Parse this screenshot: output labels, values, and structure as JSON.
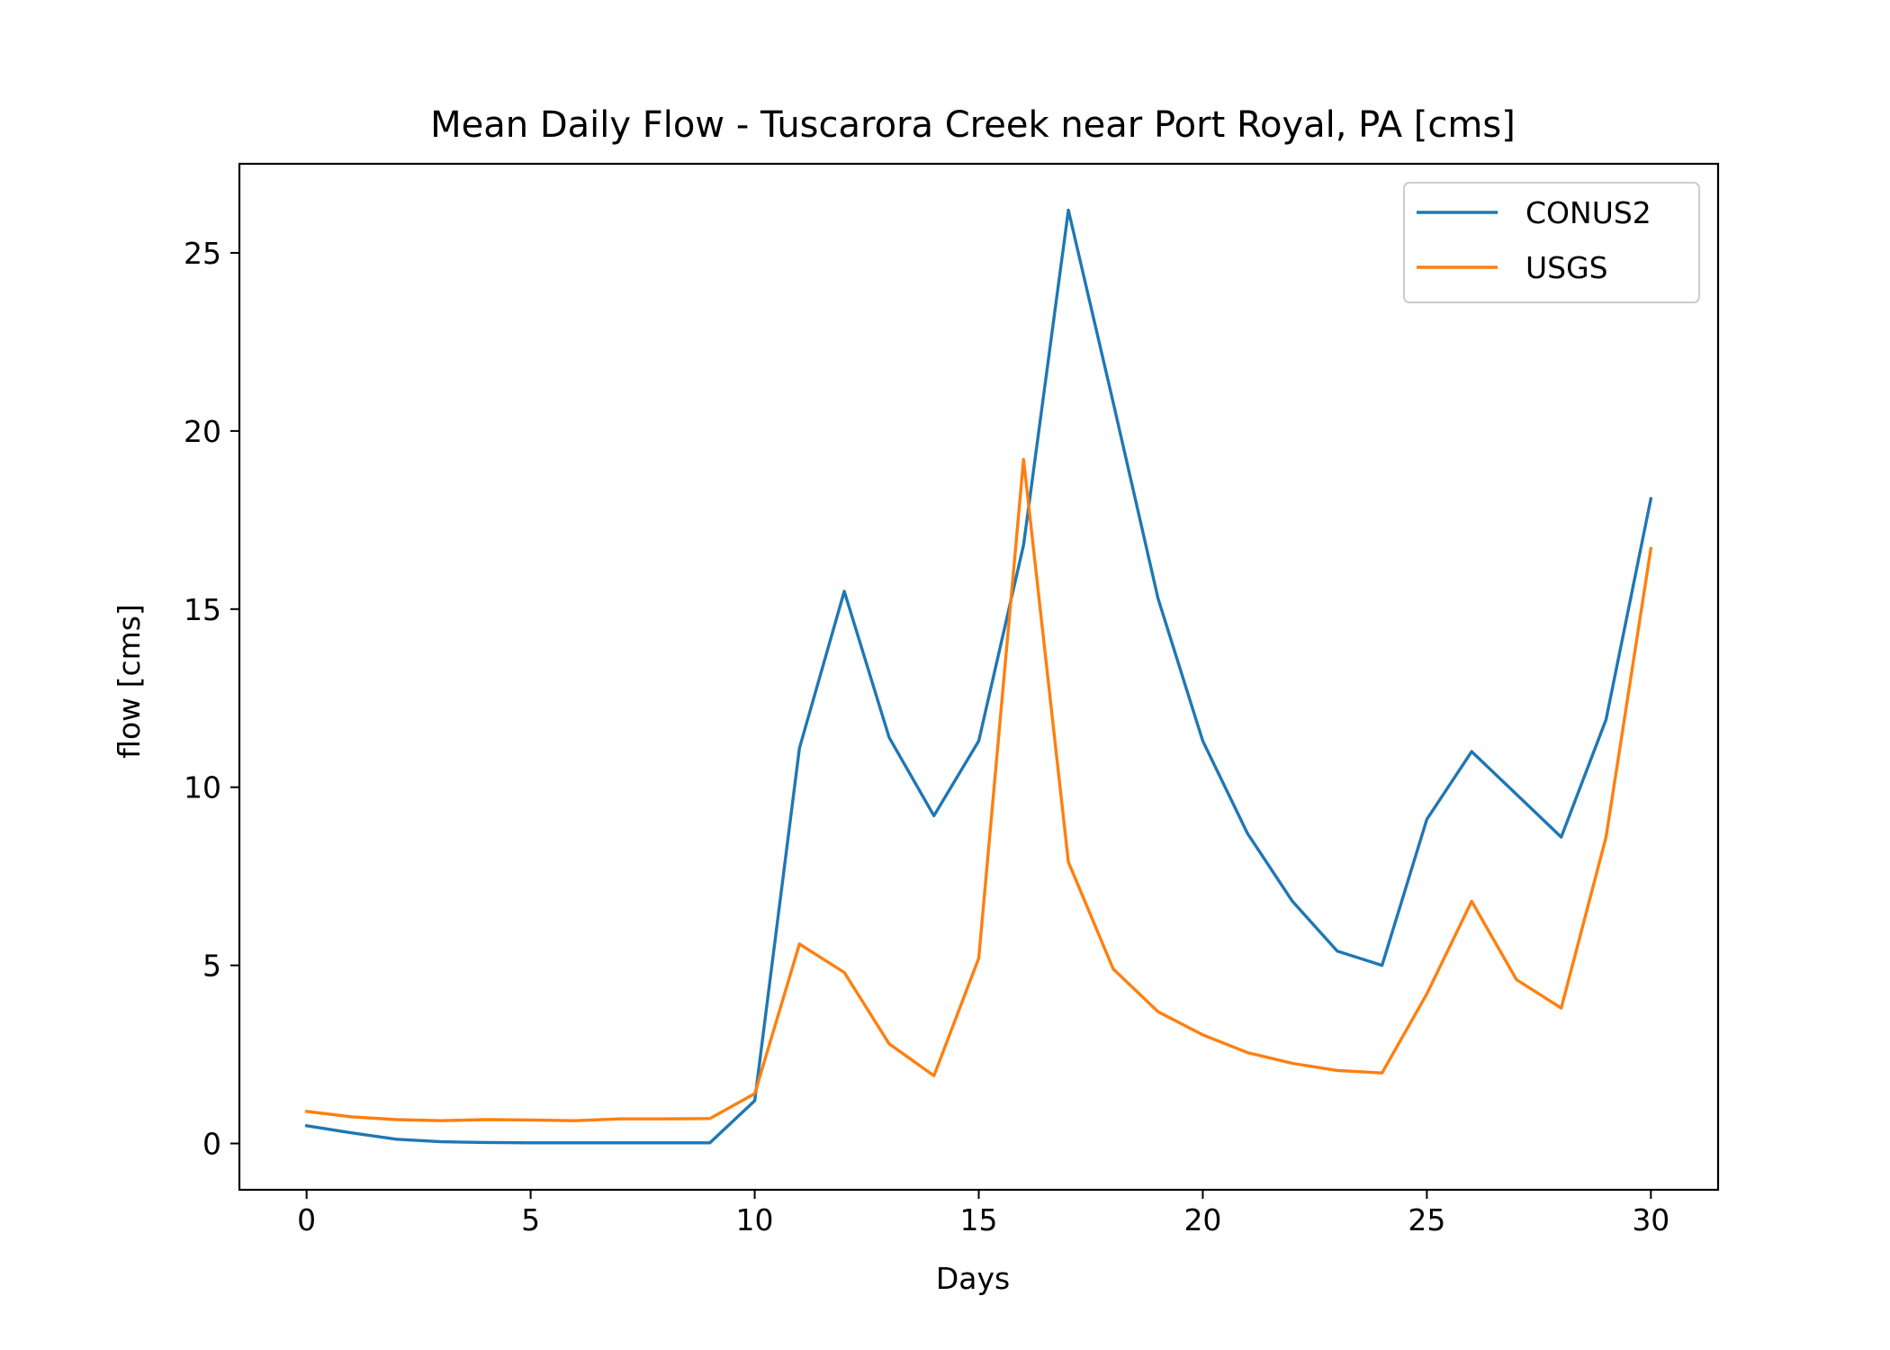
{
  "chart_data": {
    "type": "line",
    "title": "Mean Daily Flow - Tuscarora Creek near Port Royal, PA [cms]",
    "xlabel": "Days",
    "ylabel": "flow [cms]",
    "xlim": [
      -1.5,
      31.5
    ],
    "ylim": [
      -1.3,
      27.5
    ],
    "xticks": [
      0,
      5,
      10,
      15,
      20,
      25,
      30
    ],
    "yticks": [
      0,
      5,
      10,
      15,
      20,
      25
    ],
    "grid": false,
    "legend_position": "top-right",
    "x": [
      0,
      1,
      2,
      3,
      4,
      5,
      6,
      7,
      8,
      9,
      10,
      11,
      12,
      13,
      14,
      15,
      16,
      17,
      18,
      19,
      20,
      21,
      22,
      23,
      24,
      25,
      26,
      27,
      28,
      29,
      30
    ],
    "series": [
      {
        "name": "CONUS2",
        "color": "#1f77b4",
        "values": [
          0.5,
          0.3,
          0.12,
          0.05,
          0.03,
          0.02,
          0.02,
          0.02,
          0.02,
          0.02,
          1.2,
          11.1,
          15.5,
          11.4,
          9.2,
          11.3,
          16.8,
          26.2,
          20.8,
          15.3,
          11.3,
          8.7,
          6.8,
          5.4,
          5.0,
          9.1,
          11.0,
          9.8,
          8.6,
          11.9,
          18.1
        ]
      },
      {
        "name": "USGS",
        "color": "#ff7f0e",
        "values": [
          0.9,
          0.75,
          0.67,
          0.64,
          0.67,
          0.66,
          0.64,
          0.69,
          0.69,
          0.7,
          1.4,
          5.6,
          4.8,
          2.8,
          1.9,
          5.2,
          19.2,
          7.9,
          4.9,
          3.7,
          3.05,
          2.55,
          2.25,
          2.05,
          1.98,
          4.2,
          6.8,
          4.6,
          3.8,
          8.6,
          16.7
        ]
      }
    ]
  }
}
